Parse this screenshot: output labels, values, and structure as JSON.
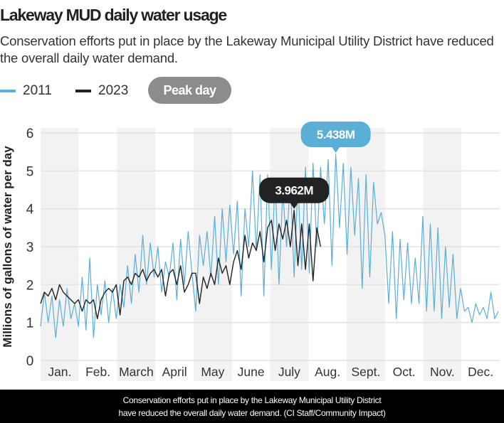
{
  "header": {
    "title": "Lakeway MUD daily water usage",
    "subtitle": "Conservation efforts put in place by the Lakeway Municipal Utility District have reduced the overall daily water demand."
  },
  "legend": {
    "items": [
      {
        "label": "2011",
        "color": "#5aafd6"
      },
      {
        "label": "2023",
        "color": "#222222"
      }
    ],
    "peak_label": "Peak day"
  },
  "caption": {
    "line1": "Conservation efforts put in place by the Lakeway Municipal Utility District",
    "line2": "have reduced the overall daily water demand. (CI Staff/Community Impact)"
  },
  "chart_data": {
    "type": "line",
    "title": "Lakeway MUD daily water usage",
    "ylabel": "Millions of gallons of water per day",
    "xlabel": "",
    "ylim": [
      0,
      6
    ],
    "yticks": [
      0,
      1,
      2,
      3,
      4,
      5,
      6
    ],
    "xlim_day_of_year": [
      1,
      365
    ],
    "grid": true,
    "month_labels": [
      "Jan.",
      "Feb.",
      "March",
      "April",
      "May",
      "June",
      "July",
      "Aug.",
      "Sept.",
      "Oct.",
      "Nov.",
      "Dec."
    ],
    "alternating_month_shading": true,
    "colors": {
      "2011": "#5aafd6",
      "2023": "#222222",
      "band": "#f2f2f2"
    },
    "series": [
      {
        "name": "2011",
        "day_start": 1,
        "day_step": 3,
        "values": [
          0.9,
          1.8,
          1.0,
          1.7,
          0.6,
          1.6,
          0.9,
          1.9,
          1.1,
          1.5,
          0.9,
          2.2,
          0.8,
          2.7,
          0.6,
          2.0,
          1.2,
          2.1,
          1.0,
          1.9,
          1.1,
          2.0,
          1.4,
          2.5,
          1.5,
          2.8,
          1.8,
          3.3,
          2.0,
          3.1,
          2.2,
          3.0,
          1.8,
          2.6,
          2.2,
          3.1,
          1.6,
          3.2,
          2.0,
          3.4,
          2.3,
          1.3,
          3.3,
          2.5,
          3.4,
          2.2,
          3.8,
          2.0,
          4.0,
          2.6,
          4.1,
          2.8,
          4.2,
          1.7,
          4.0,
          3.0,
          5.0,
          2.9,
          4.9,
          1.7,
          4.9,
          2.4,
          4.8,
          2.0,
          4.5,
          3.0,
          4.8,
          2.2,
          4.7,
          2.4,
          5.1,
          2.3,
          5.2,
          3.0,
          5.1,
          3.6,
          5.3,
          2.5,
          5.438,
          3.5,
          5.2,
          2.8,
          5.1,
          3.3,
          4.8,
          1.9,
          4.9,
          2.2,
          4.7,
          3.6,
          3.9,
          3.3,
          1.5,
          3.4,
          1.1,
          3.2,
          1.6,
          3.1,
          1.5,
          2.7,
          1.5,
          3.8,
          1.3,
          3.6,
          1.3,
          3.5,
          1.1,
          3.0,
          1.4,
          2.8,
          1.1,
          1.9,
          1.3,
          1.4,
          1.0,
          1.5,
          1.2,
          1.4,
          1.1,
          1.8,
          1.1,
          1.3
        ],
        "peak_label": "5.438M"
      },
      {
        "name": "2023",
        "day_start": 1,
        "day_step": 3,
        "values": [
          1.5,
          1.8,
          1.7,
          1.9,
          1.6,
          2.0,
          1.8,
          1.7,
          1.6,
          1.5,
          1.6,
          1.3,
          1.6,
          1.5,
          1.6,
          1.1,
          1.6,
          1.8,
          1.9,
          1.8,
          2.0,
          1.2,
          2.1,
          2.2,
          2.0,
          2.3,
          2.2,
          2.4,
          2.1,
          2.3,
          2.4,
          2.2,
          2.4,
          1.7,
          2.3,
          2.4,
          2.0,
          2.5,
          1.8,
          2.0,
          2.3,
          2.3,
          1.5,
          2.2,
          1.9,
          2.3,
          2.0,
          2.7,
          2.3,
          2.5,
          2.0,
          2.6,
          2.9,
          2.4,
          3.3,
          2.7,
          3.1,
          2.9,
          3.4,
          2.6,
          3.5,
          3.7,
          2.9,
          3.6,
          3.2,
          3.7,
          3.0,
          3.962,
          2.5,
          3.6,
          2.4,
          3.6,
          2.1,
          3.5,
          3.0
        ],
        "peak_label": "3.962M"
      }
    ]
  }
}
